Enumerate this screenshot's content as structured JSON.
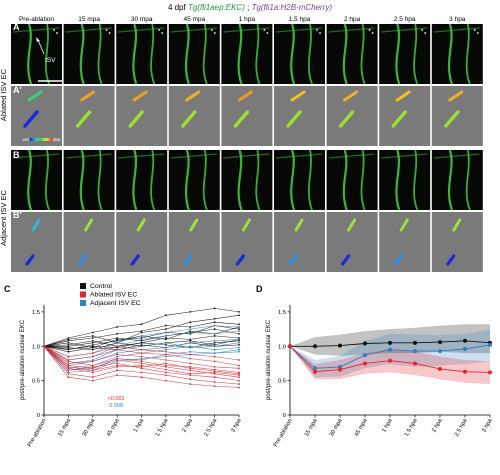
{
  "title": {
    "prefix": "4 dpf ",
    "transgene1": "Tg(fli1aep:EKC)",
    "separator": ";",
    "transgene2": "Tg(fli1a:H2B-mCherry)",
    "color1": "#1a9a3a",
    "color2": "#7b3fa0"
  },
  "timepoints": [
    "Pre-ablation",
    "15 mpa",
    "30 mpa",
    "45 mpa",
    "1 hpa",
    "1.5 hpa",
    "2 hpa",
    "2.5 hpa",
    "3 hpa"
  ],
  "panels": {
    "A": "A",
    "A_prime": "A'",
    "B": "B",
    "B_prime": "B'",
    "C": "C",
    "D": "D"
  },
  "row_labels": {
    "ablated": "Ablated ISV EC",
    "adjacent": "Adjacent ISV EC"
  },
  "annotations": {
    "isv": "ISV",
    "scale_ends": [
      "enr",
      "dep"
    ]
  },
  "colors": {
    "control": "#111111",
    "ablated": "#e0262f",
    "adjacent": "#2f7fc1",
    "micro_green": "#43c93c",
    "micro_bg": "#050805",
    "gray_bg": "#7a7a7a"
  },
  "chart_data": [
    {
      "type": "line",
      "panel": "C",
      "ylabel": "post/pre-ablation nuclear EKC",
      "x": [
        "Pre-ablation",
        "15 mpa",
        "30 mpa",
        "45 mpa",
        "1 hpa",
        "1.5 hpa",
        "2 hpa",
        "2.5 hpa",
        "3 hpa"
      ],
      "ylim": [
        0,
        1.6
      ],
      "yticks": [
        0,
        0.5,
        1.0,
        1.5
      ],
      "legend": [
        "Control",
        "Ablated ISV EC",
        "Adjacent ISV EC"
      ],
      "legend_position": "top-center",
      "annotations": [
        {
          "text": "<0.001",
          "color": "#e0262f"
        },
        {
          "text": "0.008",
          "color": "#2f7fc1"
        }
      ],
      "series": [
        {
          "group": "control",
          "values": [
            1.0,
            1.1,
            1.15,
            1.05,
            1.2,
            1.25,
            1.35,
            1.4,
            1.45
          ]
        },
        {
          "group": "control",
          "values": [
            1.0,
            1.05,
            0.98,
            1.1,
            1.12,
            1.2,
            1.18,
            1.3,
            1.25
          ]
        },
        {
          "group": "control",
          "values": [
            1.0,
            0.95,
            1.02,
            1.08,
            1.15,
            1.1,
            1.22,
            1.18,
            1.28
          ]
        },
        {
          "group": "control",
          "values": [
            1.0,
            1.02,
            1.08,
            1.0,
            1.05,
            1.12,
            1.1,
            1.15,
            1.12
          ]
        },
        {
          "group": "control",
          "values": [
            1.0,
            0.98,
            0.95,
            1.05,
            1.0,
            1.05,
            1.08,
            1.02,
            1.1
          ]
        },
        {
          "group": "control",
          "values": [
            1.0,
            1.08,
            1.12,
            1.18,
            1.22,
            1.3,
            1.28,
            1.35,
            1.32
          ]
        },
        {
          "group": "control",
          "values": [
            1.0,
            0.92,
            0.98,
            0.95,
            1.02,
            0.98,
            1.05,
            1.0,
            1.02
          ]
        },
        {
          "group": "control",
          "values": [
            1.0,
            1.12,
            1.2,
            1.28,
            1.32,
            1.45,
            1.5,
            1.55,
            1.5
          ]
        },
        {
          "group": "control",
          "values": [
            1.0,
            1.0,
            1.05,
            1.12,
            1.08,
            1.15,
            1.2,
            1.25,
            1.18
          ]
        },
        {
          "group": "control",
          "values": [
            1.0,
            0.96,
            1.0,
            0.98,
            1.05,
            1.02,
            0.98,
            1.05,
            1.08
          ]
        },
        {
          "group": "ablated",
          "values": [
            1.0,
            0.72,
            0.68,
            0.8,
            0.75,
            0.7,
            0.65,
            0.6,
            0.55
          ]
        },
        {
          "group": "ablated",
          "values": [
            1.0,
            0.65,
            0.7,
            0.75,
            0.68,
            0.62,
            0.58,
            0.55,
            0.5
          ]
        },
        {
          "group": "ablated",
          "values": [
            1.0,
            0.8,
            0.85,
            0.95,
            0.9,
            0.88,
            0.82,
            0.78,
            0.72
          ]
        },
        {
          "group": "ablated",
          "values": [
            1.0,
            0.6,
            0.55,
            0.65,
            0.62,
            0.58,
            0.52,
            0.48,
            0.45
          ]
        },
        {
          "group": "ablated",
          "values": [
            1.0,
            0.75,
            0.78,
            0.88,
            0.85,
            0.8,
            0.75,
            0.7,
            0.68
          ]
        },
        {
          "group": "ablated",
          "values": [
            1.0,
            0.68,
            0.62,
            0.7,
            0.72,
            0.66,
            0.6,
            0.62,
            0.58
          ]
        },
        {
          "group": "ablated",
          "values": [
            1.0,
            0.85,
            0.9,
            1.0,
            0.95,
            0.92,
            0.88,
            0.85,
            0.8
          ]
        },
        {
          "group": "ablated",
          "values": [
            1.0,
            0.55,
            0.5,
            0.58,
            0.55,
            0.5,
            0.45,
            0.42,
            0.4
          ]
        },
        {
          "group": "ablated",
          "values": [
            1.0,
            0.78,
            0.72,
            0.82,
            0.78,
            0.72,
            0.7,
            0.66,
            0.62
          ]
        },
        {
          "group": "ablated",
          "values": [
            1.0,
            0.7,
            0.65,
            0.72,
            0.7,
            0.75,
            0.68,
            0.64,
            0.6
          ]
        },
        {
          "group": "adjacent",
          "values": [
            1.0,
            0.75,
            0.8,
            0.95,
            1.0,
            1.05,
            0.98,
            1.0,
            1.05
          ]
        },
        {
          "group": "adjacent",
          "values": [
            1.0,
            0.68,
            0.72,
            0.85,
            0.9,
            0.95,
            1.0,
            0.95,
            0.98
          ]
        },
        {
          "group": "adjacent",
          "values": [
            1.0,
            0.8,
            0.85,
            1.0,
            1.1,
            1.15,
            1.2,
            1.18,
            1.22
          ]
        },
        {
          "group": "adjacent",
          "values": [
            1.0,
            0.62,
            0.65,
            0.78,
            0.82,
            0.85,
            0.88,
            0.9,
            0.92
          ]
        },
        {
          "group": "adjacent",
          "values": [
            1.0,
            0.72,
            0.78,
            0.9,
            0.95,
            0.98,
            1.05,
            1.08,
            1.1
          ]
        },
        {
          "group": "adjacent",
          "values": [
            1.0,
            0.85,
            0.9,
            1.05,
            1.15,
            1.2,
            1.25,
            1.3,
            1.28
          ]
        },
        {
          "group": "adjacent",
          "values": [
            1.0,
            0.65,
            0.68,
            0.82,
            0.8,
            0.88,
            0.92,
            0.9,
            0.95
          ]
        }
      ]
    },
    {
      "type": "line",
      "panel": "D",
      "ylabel": "post/pre-ablation nuclear EKC",
      "x": [
        "Pre-ablation",
        "15 mpa",
        "30 mpa",
        "45 mpa",
        "1 hpa",
        "1.5 hpa",
        "2 hpa",
        "2.5 hpa",
        "3 hpa"
      ],
      "ylim": [
        0,
        1.6
      ],
      "yticks": [
        0,
        0.5,
        1.0,
        1.5
      ],
      "series": [
        {
          "group": "control",
          "values": [
            1.0,
            1.0,
            1.01,
            1.04,
            1.05,
            1.05,
            1.06,
            1.08,
            1.05
          ],
          "lower": [
            1.0,
            0.88,
            0.86,
            0.88,
            0.9,
            0.9,
            0.92,
            0.9,
            0.9
          ],
          "upper": [
            1.0,
            1.13,
            1.17,
            1.22,
            1.25,
            1.27,
            1.3,
            1.32,
            1.32
          ]
        },
        {
          "group": "adjacent",
          "values": [
            1.0,
            0.68,
            0.7,
            0.87,
            0.95,
            0.93,
            0.93,
            0.96,
            1.02
          ],
          "lower": [
            1.0,
            0.55,
            0.56,
            0.68,
            0.74,
            0.7,
            0.72,
            0.74,
            0.78
          ],
          "upper": [
            1.0,
            0.8,
            0.86,
            1.08,
            1.18,
            1.17,
            1.16,
            1.18,
            1.24
          ]
        },
        {
          "group": "ablated",
          "values": [
            1.0,
            0.63,
            0.66,
            0.75,
            0.79,
            0.75,
            0.67,
            0.63,
            0.62
          ],
          "lower": [
            1.0,
            0.52,
            0.52,
            0.6,
            0.62,
            0.58,
            0.52,
            0.47,
            0.45
          ],
          "upper": [
            1.0,
            0.74,
            0.8,
            0.9,
            0.96,
            0.92,
            0.85,
            0.8,
            0.78
          ]
        }
      ]
    }
  ]
}
